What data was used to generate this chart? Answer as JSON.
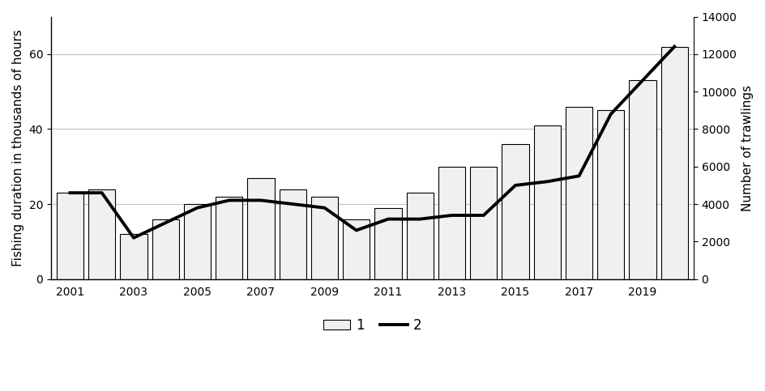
{
  "years": [
    2001,
    2002,
    2003,
    2004,
    2005,
    2006,
    2007,
    2008,
    2009,
    2010,
    2011,
    2012,
    2013,
    2014,
    2015,
    2016,
    2017,
    2018,
    2019,
    2020
  ],
  "bar_values": [
    23,
    24,
    12,
    16,
    20,
    22,
    27,
    24,
    22,
    16,
    19,
    23,
    30,
    30,
    36,
    41,
    46,
    45,
    53,
    62
  ],
  "line_values": [
    4600,
    4600,
    2200,
    3000,
    3800,
    4200,
    4200,
    4000,
    3800,
    2600,
    3200,
    3200,
    3400,
    3400,
    5000,
    5200,
    5500,
    8800,
    10600,
    12400
  ],
  "bar_color": "#f0f0f0",
  "bar_edgecolor": "#000000",
  "line_color": "#000000",
  "line_width": 2.8,
  "ylabel_left": "Fishing duration in thousands of hours",
  "ylabel_right": "Number of trawlings",
  "ylim_left": [
    0,
    70
  ],
  "ylim_right": [
    0,
    14000
  ],
  "yticks_left": [
    0,
    20,
    40,
    60
  ],
  "yticks_right": [
    0,
    2000,
    4000,
    6000,
    8000,
    10000,
    12000,
    14000
  ],
  "odd_years": [
    2001,
    2003,
    2005,
    2007,
    2009,
    2011,
    2013,
    2015,
    2017,
    2019
  ],
  "grid_color": "#c0c0c0",
  "grid_linewidth": 0.8,
  "legend_labels": [
    "1",
    "2"
  ],
  "background_color": "#ffffff",
  "bar_width": 0.85
}
